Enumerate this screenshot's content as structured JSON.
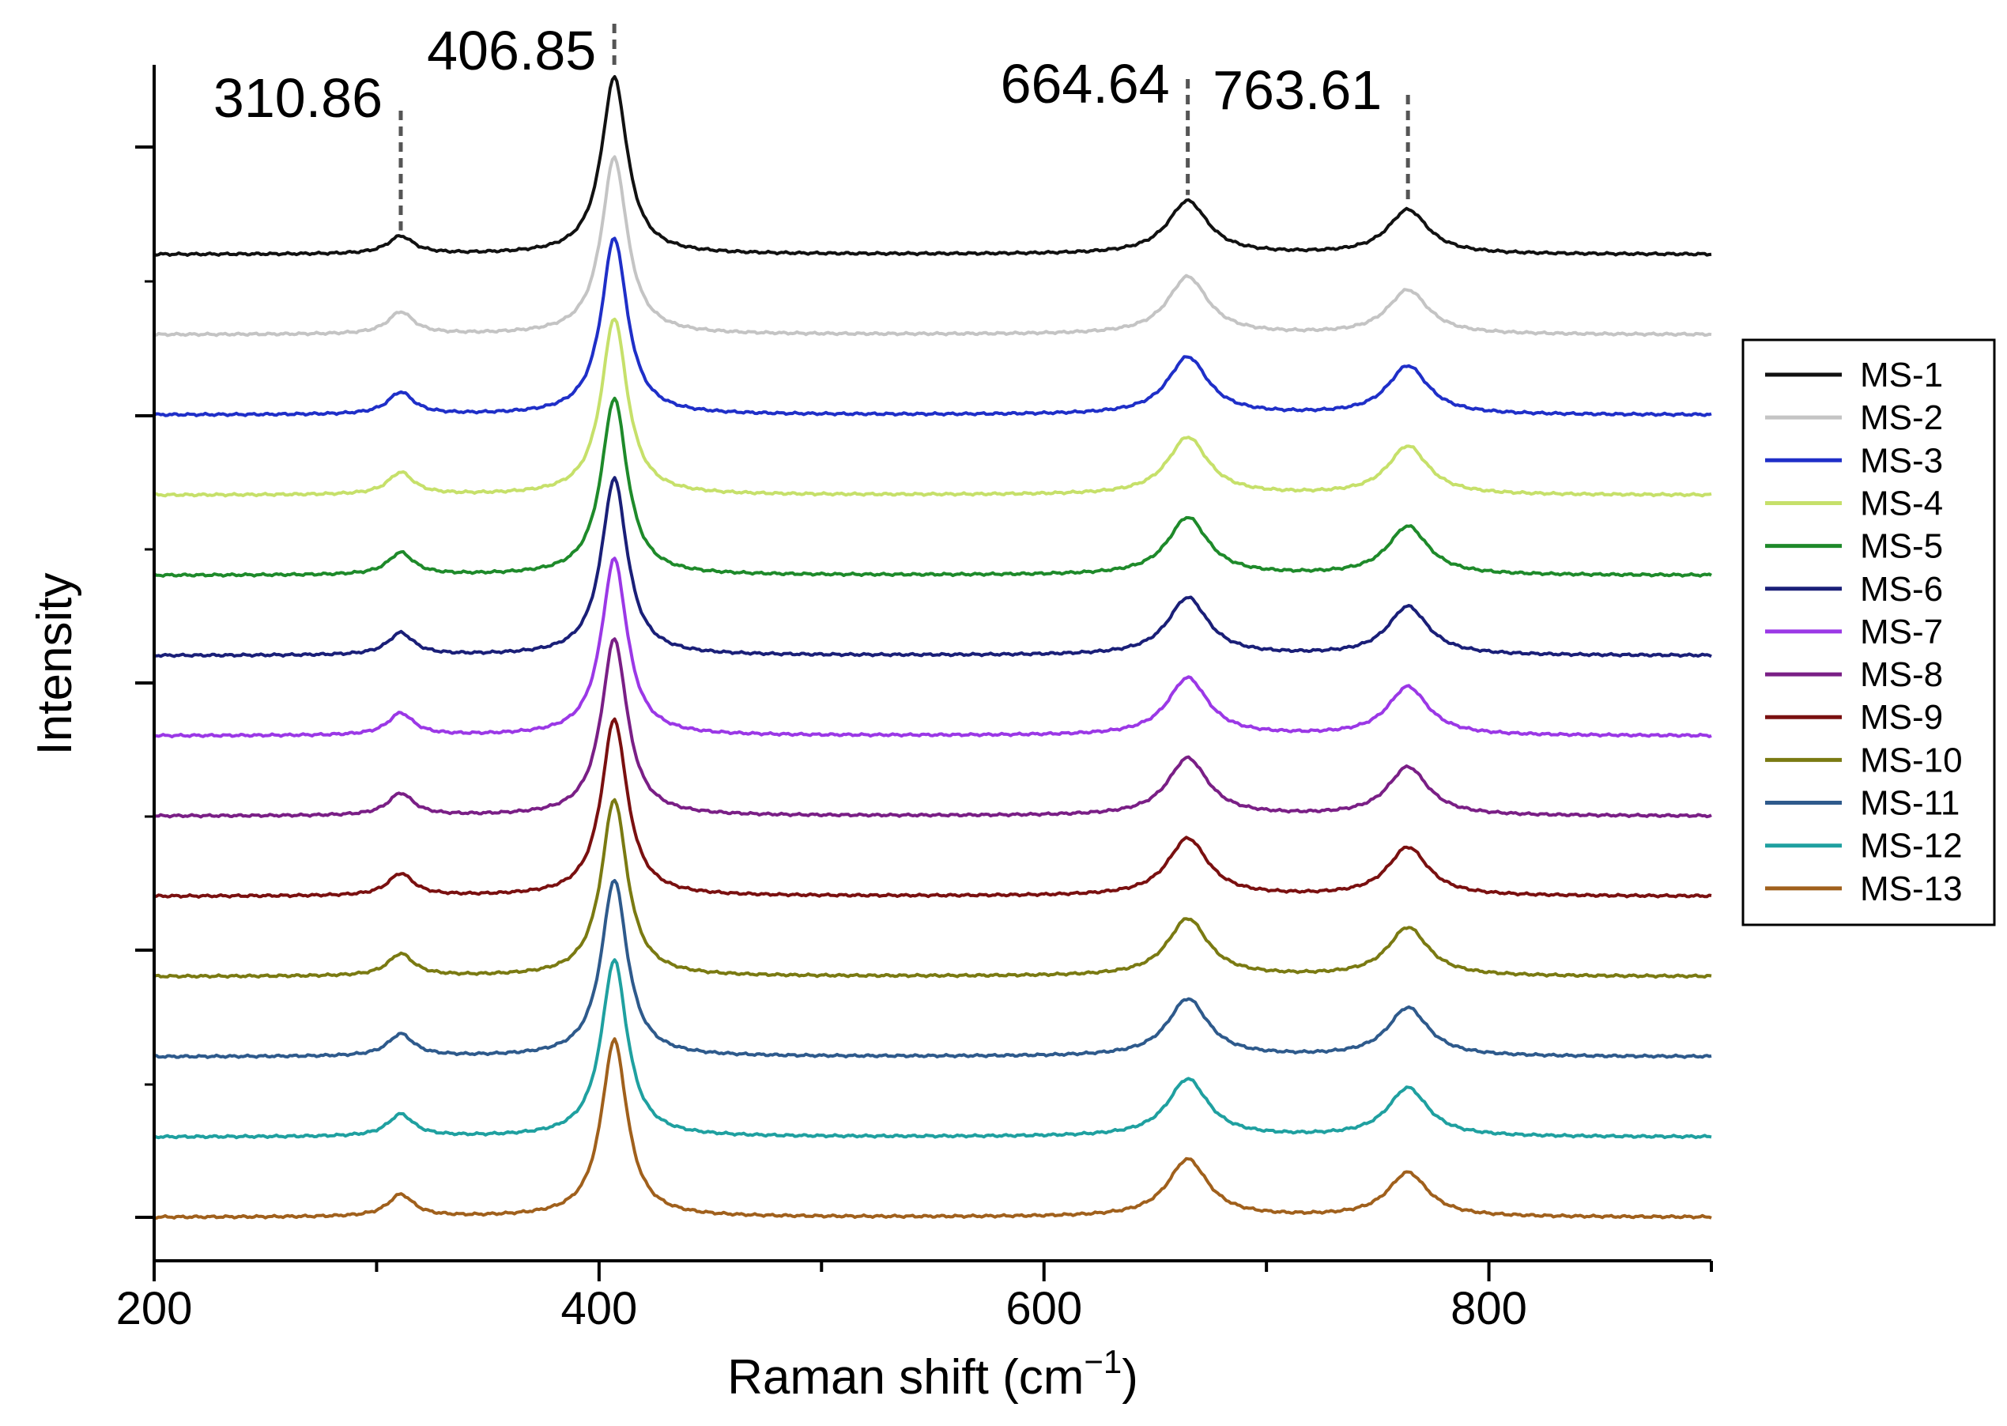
{
  "chart_data": {
    "type": "line",
    "title": "",
    "xlabel": "Raman shift (cm",
    "xlabel_sup": "−1",
    "xlabel_close": ")",
    "ylabel": "Intensity",
    "xlim": [
      200,
      900
    ],
    "xticks": [
      "200",
      "400",
      "600",
      "800"
    ],
    "grid": false,
    "legend_position": "right",
    "peaks": [
      {
        "label": "310.86",
        "x": 310.86
      },
      {
        "label": "406.85",
        "x": 406.85
      },
      {
        "label": "664.64",
        "x": 664.64
      },
      {
        "label": "763.61",
        "x": 763.61
      }
    ],
    "series": [
      {
        "name": "MS-1",
        "color": "#111111",
        "amplitudes": [
          0.2,
          2.0,
          0.6,
          0.5
        ]
      },
      {
        "name": "MS-2",
        "color": "#c4c4c4",
        "amplitudes": [
          0.25,
          2.0,
          0.65,
          0.5
        ]
      },
      {
        "name": "MS-3",
        "color": "#1f2fc8",
        "amplitudes": [
          0.25,
          2.0,
          0.65,
          0.55
        ]
      },
      {
        "name": "MS-4",
        "color": "#c6e06a",
        "amplitudes": [
          0.25,
          2.0,
          0.65,
          0.55
        ]
      },
      {
        "name": "MS-5",
        "color": "#1e8a2a",
        "amplitudes": [
          0.25,
          2.0,
          0.65,
          0.55
        ]
      },
      {
        "name": "MS-6",
        "color": "#1a1f78",
        "amplitudes": [
          0.25,
          2.0,
          0.65,
          0.55
        ]
      },
      {
        "name": "MS-7",
        "color": "#9b38e6",
        "amplitudes": [
          0.25,
          2.0,
          0.65,
          0.55
        ]
      },
      {
        "name": "MS-8",
        "color": "#7a1f86",
        "amplitudes": [
          0.25,
          2.0,
          0.65,
          0.55
        ]
      },
      {
        "name": "MS-9",
        "color": "#7a1010",
        "amplitudes": [
          0.25,
          2.0,
          0.65,
          0.55
        ]
      },
      {
        "name": "MS-10",
        "color": "#7a7a12",
        "amplitudes": [
          0.25,
          2.0,
          0.65,
          0.55
        ]
      },
      {
        "name": "MS-11",
        "color": "#2e5a8c",
        "amplitudes": [
          0.25,
          2.0,
          0.65,
          0.55
        ]
      },
      {
        "name": "MS-12",
        "color": "#1fa0a0",
        "amplitudes": [
          0.25,
          2.0,
          0.65,
          0.55
        ]
      },
      {
        "name": "MS-13",
        "color": "#a0601c",
        "amplitudes": [
          0.25,
          2.0,
          0.65,
          0.5
        ]
      }
    ]
  }
}
